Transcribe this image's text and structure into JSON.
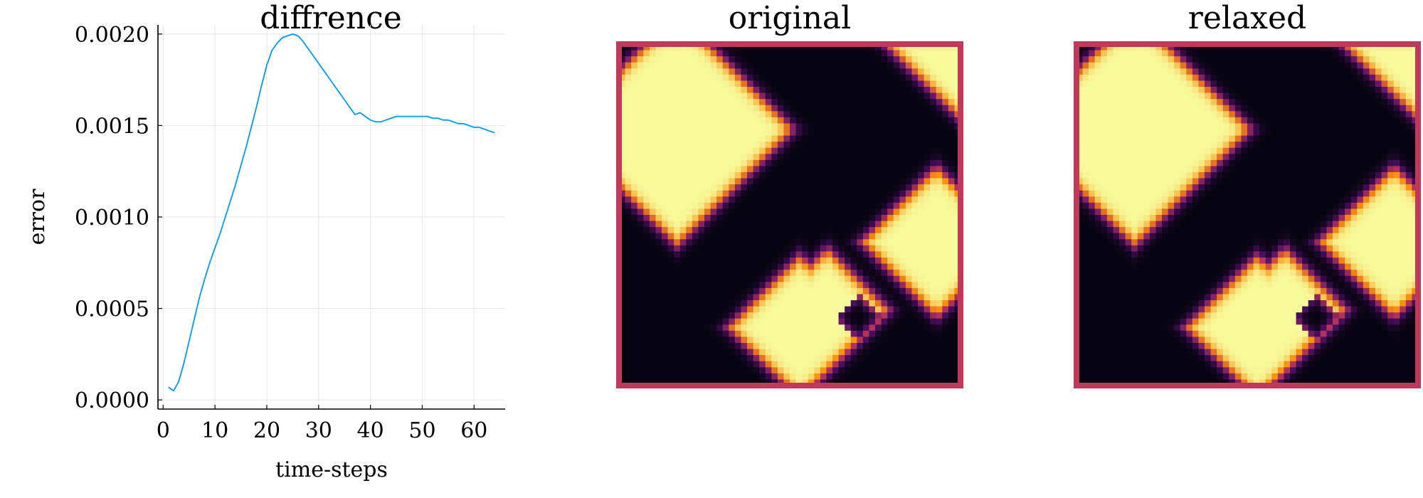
{
  "chart_data": [
    {
      "type": "line",
      "title": "diffrence",
      "xlabel": "time-steps",
      "ylabel": "error",
      "xlim": [
        -1,
        66
      ],
      "ylim": [
        -5e-05,
        0.00205
      ],
      "xticks": [
        0,
        10,
        20,
        30,
        40,
        50,
        60
      ],
      "xtick_labels": [
        "0",
        "10",
        "20",
        "30",
        "40",
        "50",
        "60"
      ],
      "yticks": [
        0,
        0.0005,
        0.001,
        0.0015,
        0.002
      ],
      "ytick_labels": [
        "0.0000",
        "0.0005",
        "0.0010",
        "0.0015",
        "0.0020"
      ],
      "grid": true,
      "series": [
        {
          "color": "#009AFA",
          "x": [
            1,
            2,
            3,
            4,
            5,
            6,
            7,
            8,
            9,
            10,
            11,
            12,
            13,
            14,
            15,
            16,
            17,
            18,
            19,
            20,
            21,
            22,
            23,
            24,
            25,
            26,
            27,
            28,
            29,
            30,
            31,
            32,
            33,
            34,
            35,
            36,
            37,
            38,
            39,
            40,
            41,
            42,
            43,
            44,
            45,
            46,
            47,
            48,
            49,
            50,
            51,
            52,
            53,
            54,
            55,
            56,
            57,
            58,
            59,
            60,
            61,
            62,
            63,
            64
          ],
          "values": [
            7e-05,
            5e-05,
            0.0001,
            0.0002,
            0.00032,
            0.00044,
            0.00056,
            0.00066,
            0.00075,
            0.00083,
            0.00091,
            0.001,
            0.00109,
            0.00118,
            0.00128,
            0.00138,
            0.00149,
            0.0016,
            0.00172,
            0.00183,
            0.00191,
            0.00195,
            0.00198,
            0.00199,
            0.002,
            0.00199,
            0.00196,
            0.00192,
            0.00188,
            0.00184,
            0.0018,
            0.00176,
            0.00172,
            0.00168,
            0.00164,
            0.0016,
            0.00156,
            0.00157,
            0.00155,
            0.00153,
            0.00152,
            0.00152,
            0.00153,
            0.00154,
            0.00155,
            0.00155,
            0.00155,
            0.00155,
            0.00155,
            0.00155,
            0.00155,
            0.00154,
            0.00154,
            0.00153,
            0.00153,
            0.00152,
            0.00151,
            0.00151,
            0.0015,
            0.00149,
            0.00149,
            0.00148,
            0.00147,
            0.00146
          ]
        }
      ]
    },
    {
      "type": "heatmap",
      "title": "original",
      "colormap": "inferno",
      "frame_color": "#C0395A",
      "blocks": [
        {
          "cx": 0.17,
          "cy": 0.25,
          "r": 0.34
        },
        {
          "cx": 0.61,
          "cy": 0.78,
          "r": 0.18
        },
        {
          "cx": 0.53,
          "cy": 0.83,
          "r": 0.21
        },
        {
          "cx": 0.93,
          "cy": 0.58,
          "r": 0.22
        },
        {
          "cx": 1.0,
          "cy": 0.0,
          "r": 0.22
        }
      ]
    },
    {
      "type": "heatmap",
      "title": "relaxed",
      "colormap": "inferno",
      "frame_color": "#C0395A"
    }
  ]
}
